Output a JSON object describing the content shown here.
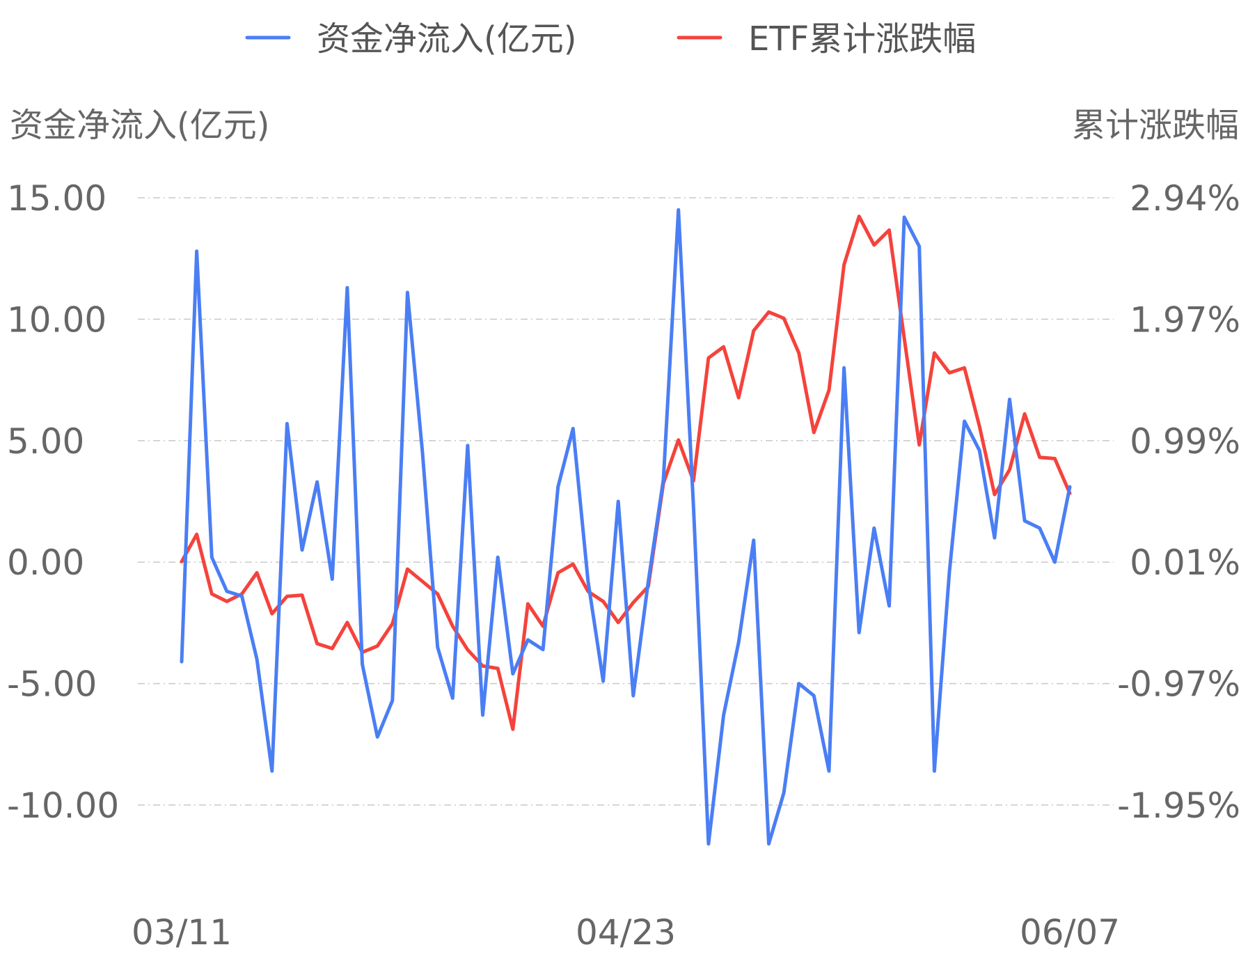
{
  "chart_data": {
    "type": "line",
    "legend": [
      {
        "name": "资金净流入(亿元)",
        "color": "#4a7ef4"
      },
      {
        "name": "ETF累计涨跌幅",
        "color": "#f4433c"
      }
    ],
    "y_left_title": "资金净流入(亿元)",
    "y_right_title": "累计涨跌幅",
    "y_left_ticks": [
      "15.00",
      "10.00",
      "5.00",
      "0.00",
      "-5.00",
      "-10.00"
    ],
    "y_right_ticks": [
      "2.94%",
      "1.97%",
      "0.99%",
      "0.01%",
      "-0.97%",
      "-1.95%"
    ],
    "x_tick_labels": [
      "03/11",
      "04/23",
      "06/07"
    ],
    "y_left_range": [
      -10,
      15
    ],
    "y_right_range": [
      -1.95,
      2.94
    ],
    "grid": true,
    "legend_position": "top-center",
    "series": [
      {
        "name": "资金净流入(亿元)",
        "axis": "left",
        "color": "#4a7ef4",
        "values": [
          -4.1,
          12.8,
          0.2,
          -1.2,
          -1.4,
          -4.0,
          -8.6,
          5.7,
          0.5,
          3.3,
          -0.7,
          11.3,
          -4.2,
          -7.2,
          -5.7,
          11.1,
          4.5,
          -3.5,
          -5.6,
          4.8,
          -6.3,
          0.2,
          -4.6,
          -3.2,
          -3.6,
          3.1,
          5.5,
          -0.8,
          -4.9,
          2.5,
          -5.5,
          -0.8,
          3.4,
          14.5,
          2.3,
          -11.6,
          -6.3,
          -3.3,
          0.9,
          -11.6,
          -9.5,
          -5.0,
          -5.5,
          -8.6,
          8.0,
          -2.9,
          1.4,
          -1.8,
          14.2,
          13.0,
          -8.6,
          -0.4,
          5.8,
          4.6,
          1.0,
          6.7,
          1.7,
          1.4,
          0.0,
          3.1
        ]
      },
      {
        "name": "ETF累计涨跌幅",
        "axis": "right",
        "color": "#f4433c",
        "values": [
          0.01,
          0.23,
          -0.25,
          -0.31,
          -0.25,
          -0.08,
          -0.41,
          -0.27,
          -0.26,
          -0.65,
          -0.69,
          -0.48,
          -0.72,
          -0.67,
          -0.49,
          -0.05,
          -0.15,
          -0.25,
          -0.51,
          -0.7,
          -0.83,
          -0.85,
          -1.34,
          -0.33,
          -0.51,
          -0.08,
          -0.01,
          -0.23,
          -0.31,
          -0.48,
          -0.32,
          -0.19,
          0.64,
          0.99,
          0.66,
          1.65,
          1.74,
          1.33,
          1.87,
          2.02,
          1.97,
          1.69,
          1.05,
          1.39,
          2.4,
          2.79,
          2.56,
          2.68,
          1.81,
          0.95,
          1.69,
          1.53,
          1.57,
          1.1,
          0.55,
          0.75,
          1.2,
          0.85,
          0.84,
          0.56
        ]
      }
    ]
  }
}
